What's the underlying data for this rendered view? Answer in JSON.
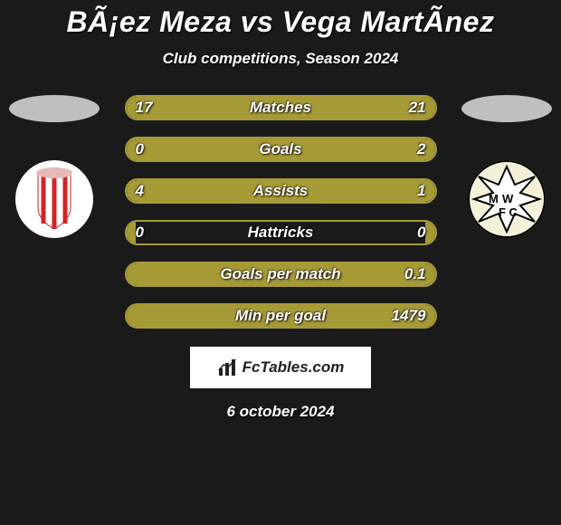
{
  "title": "BÃ¡ez Meza vs Vega MartÃ­nez",
  "subtitle": "Club competitions, Season 2024",
  "date": "6 october 2024",
  "attribution": "FcTables.com",
  "colors": {
    "background": "#1a1a1a",
    "bar_border": "#a59a36",
    "bar_fill": "#a59a36",
    "text": "#ffffff",
    "ellipse": "#bfbfbf"
  },
  "left_club": {
    "bg": "#ffffff",
    "stripe": "#d22424"
  },
  "right_club": {
    "bg": "#f5f0d8",
    "ring": "#000000"
  },
  "stats": [
    {
      "label": "Matches",
      "left_val": "17",
      "right_val": "21",
      "left_pct": 44.7,
      "right_pct": 55.3
    },
    {
      "label": "Goals",
      "left_val": "0",
      "right_val": "2",
      "left_pct": 3.0,
      "right_pct": 97.0
    },
    {
      "label": "Assists",
      "left_val": "4",
      "right_val": "1",
      "left_pct": 80.0,
      "right_pct": 20.0
    },
    {
      "label": "Hattricks",
      "left_val": "0",
      "right_val": "0",
      "left_pct": 3.0,
      "right_pct": 3.0
    },
    {
      "label": "Goals per match",
      "left_val": "",
      "right_val": "0.1",
      "left_pct": 3.0,
      "right_pct": 97.0
    },
    {
      "label": "Min per goal",
      "left_val": "",
      "right_val": "1479",
      "left_pct": 3.0,
      "right_pct": 97.0
    }
  ]
}
